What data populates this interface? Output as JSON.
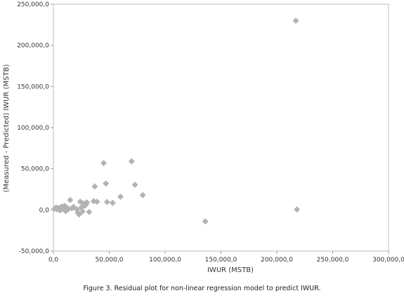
{
  "chart_data": {
    "type": "scatter",
    "title": "",
    "xlabel": "IWUR (MSTB)",
    "ylabel": "(Measured - Predicted) IWUR (MSTB)",
    "xlim": [
      0,
      300000
    ],
    "ylim": [
      -50000,
      250000
    ],
    "x_ticks": [
      0,
      50000,
      100000,
      150000,
      200000,
      250000,
      300000
    ],
    "y_ticks": [
      -50000,
      0,
      50000,
      100000,
      150000,
      200000,
      250000
    ],
    "x_tick_labels": [
      "0,0",
      "50,000,0",
      "100,000,0",
      "150,000,0",
      "200,000,0",
      "250,000,0",
      "300,000,0"
    ],
    "y_tick_labels": [
      "-50,000,0",
      "0,0",
      "50,000,0",
      "100,000,0",
      "150,000,0",
      "200,000,0",
      "250,000,0"
    ],
    "grid": false,
    "legend": "none",
    "marker_color": "#b3b3b3",
    "series": [
      {
        "points": [
          [
            1000,
            1500
          ],
          [
            2500,
            3000
          ],
          [
            3500,
            500
          ],
          [
            5000,
            2500
          ],
          [
            6000,
            -500
          ],
          [
            7500,
            4000
          ],
          [
            8500,
            1500
          ],
          [
            10000,
            5000
          ],
          [
            11000,
            -1500
          ],
          [
            12000,
            3000
          ],
          [
            13500,
            1000
          ],
          [
            15000,
            12000
          ],
          [
            16500,
            2000
          ],
          [
            18000,
            3500
          ],
          [
            21000,
            500
          ],
          [
            22000,
            -3500
          ],
          [
            23000,
            -5500
          ],
          [
            24000,
            10000
          ],
          [
            25000,
            3000
          ],
          [
            26000,
            -2000
          ],
          [
            27000,
            8000
          ],
          [
            28000,
            5000
          ],
          [
            29000,
            6500
          ],
          [
            30000,
            9000
          ],
          [
            32000,
            -2500
          ],
          [
            36000,
            10500
          ],
          [
            37000,
            28500
          ],
          [
            39000,
            10000
          ],
          [
            45000,
            57000
          ],
          [
            47000,
            32000
          ],
          [
            48000,
            9500
          ],
          [
            53000,
            8500
          ],
          [
            60000,
            16000
          ],
          [
            70000,
            59000
          ],
          [
            73000,
            30500
          ],
          [
            80000,
            18000
          ],
          [
            136000,
            -14000
          ],
          [
            217000,
            230000
          ],
          [
            218000,
            500
          ]
        ]
      }
    ],
    "caption": "Figure 3. Residual plot for non-linear regression model to predict IWUR."
  }
}
